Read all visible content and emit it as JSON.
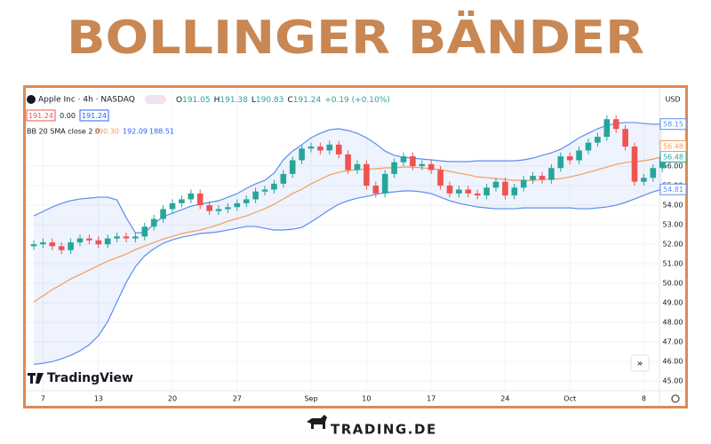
{
  "title": "BOLLINGER BÄNDER",
  "chart_data": {
    "type": "candlestick",
    "symbol": "Apple Inc · 4h · NASDAQ",
    "ohlc": [
      {
        "label": "O",
        "value": "191.05"
      },
      {
        "label": "H",
        "value": "191.38"
      },
      {
        "label": "L",
        "value": "190.83"
      },
      {
        "label": "C",
        "value": "191.24"
      }
    ],
    "change": "+0.19 (+0.10%)",
    "currency": "USD",
    "price_boxes": [
      "191.24",
      "0.00",
      "191.24"
    ],
    "indicator": {
      "label": "BB 20 SMA close 2 0",
      "values": [
        "190.30",
        "192.09",
        "188.51"
      ]
    },
    "categories": [
      null,
      "7",
      null,
      null,
      null,
      null,
      null,
      "13",
      null,
      null,
      null,
      null,
      null,
      null,
      null,
      "20",
      null,
      null,
      null,
      null,
      null,
      null,
      "27",
      null,
      null,
      null,
      null,
      null,
      null,
      null,
      "Sep",
      null,
      null,
      null,
      null,
      null,
      "10",
      null,
      null,
      null,
      null,
      null,
      null,
      "17",
      null,
      null,
      null,
      null,
      null,
      null,
      null,
      "24",
      null,
      null,
      null,
      null,
      null,
      null,
      "Oct",
      null,
      null,
      null,
      null,
      null,
      null,
      null,
      "8",
      null,
      null
    ],
    "open": [
      51.9,
      52.0,
      52.1,
      51.9,
      51.7,
      52.1,
      52.3,
      52.2,
      52.0,
      52.3,
      52.4,
      52.3,
      52.4,
      52.9,
      53.3,
      53.8,
      54.1,
      54.3,
      54.6,
      54.0,
      53.7,
      53.8,
      53.9,
      54.1,
      54.3,
      54.7,
      54.8,
      55.1,
      55.6,
      56.3,
      56.9,
      57.0,
      56.8,
      57.1,
      56.6,
      55.8,
      56.1,
      55.0,
      54.6,
      55.6,
      56.2,
      56.5,
      56.0,
      56.1,
      55.8,
      55.0,
      54.6,
      54.8,
      54.6,
      54.5,
      54.9,
      55.2,
      54.5,
      54.9,
      55.3,
      55.5,
      55.3,
      55.9,
      56.5,
      56.3,
      56.8,
      57.2,
      57.5,
      58.4,
      57.9,
      57.0,
      55.2,
      55.4,
      55.9
    ],
    "high": [
      52.2,
      52.3,
      52.3,
      52.1,
      52.3,
      52.5,
      52.5,
      52.4,
      52.5,
      52.6,
      52.6,
      52.6,
      53.1,
      53.5,
      54.0,
      54.3,
      54.5,
      54.8,
      54.8,
      54.2,
      54.0,
      54.1,
      54.3,
      54.5,
      54.9,
      55.0,
      55.3,
      55.8,
      56.5,
      57.1,
      57.2,
      57.2,
      57.3,
      57.3,
      56.8,
      56.3,
      56.3,
      55.2,
      55.8,
      56.4,
      56.7,
      56.7,
      56.3,
      56.3,
      56.0,
      55.2,
      55.0,
      55.0,
      54.8,
      55.1,
      55.4,
      55.4,
      55.1,
      55.5,
      55.7,
      55.7,
      56.1,
      56.7,
      56.7,
      57.0,
      57.4,
      57.7,
      58.6,
      58.6,
      58.1,
      57.2,
      55.6,
      56.1,
      56.68
    ],
    "low": [
      51.7,
      51.8,
      51.7,
      51.5,
      51.5,
      51.9,
      52.0,
      51.8,
      51.8,
      52.1,
      52.1,
      52.1,
      52.2,
      52.7,
      53.1,
      53.6,
      53.9,
      54.1,
      53.8,
      53.5,
      53.5,
      53.6,
      53.7,
      53.9,
      54.1,
      54.5,
      54.6,
      54.9,
      55.4,
      56.1,
      56.7,
      56.6,
      56.6,
      56.4,
      55.6,
      55.6,
      54.8,
      54.4,
      54.4,
      55.4,
      56.0,
      55.8,
      55.8,
      55.6,
      54.8,
      54.4,
      54.4,
      54.4,
      54.3,
      54.3,
      54.7,
      54.3,
      54.3,
      54.7,
      55.1,
      55.1,
      55.1,
      55.7,
      56.1,
      56.1,
      56.6,
      57.0,
      57.3,
      57.7,
      56.8,
      55.0,
      55.0,
      55.2,
      55.7
    ],
    "close": [
      52.0,
      52.1,
      51.9,
      51.7,
      52.1,
      52.3,
      52.2,
      52.0,
      52.3,
      52.4,
      52.3,
      52.4,
      52.9,
      53.3,
      53.8,
      54.1,
      54.3,
      54.6,
      54.0,
      53.7,
      53.8,
      53.9,
      54.1,
      54.3,
      54.7,
      54.8,
      55.1,
      55.6,
      56.3,
      56.9,
      57.0,
      56.8,
      57.1,
      56.6,
      55.8,
      56.1,
      55.0,
      54.6,
      55.6,
      56.2,
      56.5,
      56.0,
      56.1,
      55.8,
      55.0,
      54.6,
      54.8,
      54.6,
      54.5,
      54.9,
      55.2,
      54.5,
      54.9,
      55.3,
      55.5,
      55.3,
      55.9,
      56.5,
      56.3,
      56.8,
      57.2,
      57.5,
      58.4,
      57.9,
      57.0,
      55.2,
      55.4,
      55.9,
      56.48
    ],
    "upper_band": [
      53.45,
      53.68,
      53.91,
      54.09,
      54.23,
      54.32,
      54.36,
      54.41,
      54.41,
      54.27,
      53.36,
      52.59,
      52.59,
      53.05,
      53.41,
      53.59,
      53.77,
      53.95,
      54.05,
      54.14,
      54.23,
      54.41,
      54.59,
      54.86,
      55.09,
      55.27,
      55.64,
      56.32,
      56.77,
      57.09,
      57.45,
      57.68,
      57.86,
      57.91,
      57.82,
      57.68,
      57.45,
      57.14,
      56.77,
      56.55,
      56.45,
      56.41,
      56.36,
      56.32,
      56.27,
      56.23,
      56.23,
      56.23,
      56.27,
      56.27,
      56.27,
      56.27,
      56.27,
      56.32,
      56.41,
      56.55,
      56.68,
      56.86,
      57.14,
      57.45,
      57.68,
      57.91,
      58.09,
      58.18,
      58.23,
      58.23,
      58.18,
      58.14,
      58.15
    ],
    "middle_band": [
      49.05,
      49.36,
      49.68,
      49.95,
      50.23,
      50.45,
      50.68,
      50.91,
      51.14,
      51.32,
      51.5,
      51.73,
      51.91,
      52.09,
      52.27,
      52.41,
      52.55,
      52.64,
      52.73,
      52.86,
      53.0,
      53.18,
      53.32,
      53.45,
      53.64,
      53.82,
      54.05,
      54.32,
      54.59,
      54.82,
      55.09,
      55.32,
      55.55,
      55.68,
      55.77,
      55.82,
      55.86,
      55.86,
      55.91,
      55.91,
      55.95,
      55.95,
      55.91,
      55.86,
      55.82,
      55.73,
      55.64,
      55.55,
      55.45,
      55.41,
      55.36,
      55.32,
      55.27,
      55.27,
      55.27,
      55.32,
      55.32,
      55.36,
      55.45,
      55.55,
      55.68,
      55.82,
      55.95,
      56.09,
      56.18,
      56.23,
      56.27,
      56.36,
      56.48
    ],
    "lower_band": [
      45.86,
      45.91,
      46.0,
      46.14,
      46.32,
      46.55,
      46.86,
      47.32,
      48.05,
      49.05,
      50.05,
      50.86,
      51.41,
      51.77,
      52.05,
      52.23,
      52.36,
      52.45,
      52.55,
      52.59,
      52.64,
      52.73,
      52.82,
      52.91,
      52.91,
      52.82,
      52.73,
      52.73,
      52.77,
      52.86,
      53.14,
      53.45,
      53.77,
      54.05,
      54.23,
      54.36,
      54.45,
      54.55,
      54.64,
      54.68,
      54.73,
      54.73,
      54.68,
      54.59,
      54.41,
      54.23,
      54.09,
      54.0,
      53.91,
      53.86,
      53.82,
      53.82,
      53.82,
      53.86,
      53.86,
      53.86,
      53.86,
      53.86,
      53.86,
      53.82,
      53.82,
      53.86,
      53.91,
      54.0,
      54.14,
      54.32,
      54.5,
      54.68,
      54.81
    ],
    "up_color": "#26a69a",
    "down_color": "#ef5350",
    "band_color": "#5b8def",
    "middle_color": "#f59d5b",
    "ylim": [
      44.6,
      59.9
    ],
    "yticks": [
      {
        "value": 45,
        "label": "45.00"
      },
      {
        "value": 46,
        "label": "46.00"
      },
      {
        "value": 47,
        "label": "47.00"
      },
      {
        "value": 48,
        "label": "48.00"
      },
      {
        "value": 49,
        "label": "49.00"
      },
      {
        "value": 50,
        "label": "50.00"
      },
      {
        "value": 51,
        "label": "51.00"
      },
      {
        "value": 52,
        "label": "52.00"
      },
      {
        "value": 53,
        "label": "53.00"
      },
      {
        "value": 54,
        "label": "54.00"
      },
      {
        "value": 55,
        "label": "55.00"
      },
      {
        "value": 56,
        "label": "56.00"
      }
    ],
    "grid": true,
    "watermark": "TradingView"
  },
  "footer": "TRADING.DE"
}
